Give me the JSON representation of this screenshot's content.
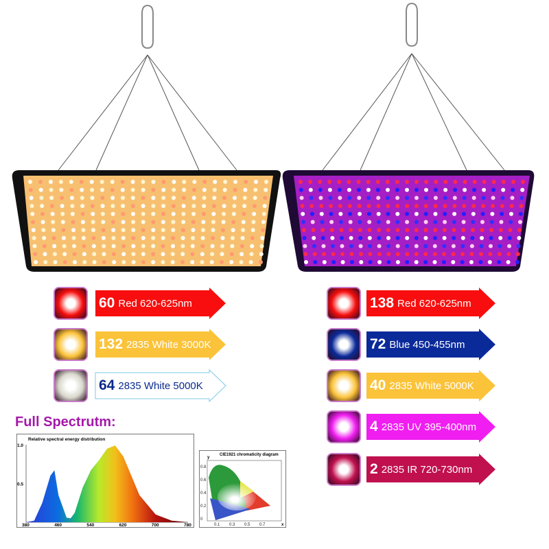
{
  "left_panel": {
    "leds": [
      {
        "count": "60",
        "label": "Red 620-625nm",
        "color": "#f80e0e",
        "text": "#ffffff",
        "icon": "red-led-icon"
      },
      {
        "count": "132",
        "label": "2835 White 3000K",
        "color": "#fbc33a",
        "text": "#ffffff",
        "icon": "warm-white-led-icon"
      },
      {
        "count": "64",
        "label": "2835 White 5000K",
        "color": "#ffffff",
        "text": "#0a2a8f",
        "icon": "cool-white-led-icon"
      }
    ]
  },
  "right_panel": {
    "leds": [
      {
        "count": "138",
        "label": "Red 620-625nm",
        "color": "#f80e0e",
        "text": "#ffffff",
        "icon": "red-led-icon"
      },
      {
        "count": "72",
        "label": "Blue 450-455nm",
        "color": "#0b2a9a",
        "text": "#ffffff",
        "icon": "blue-led-icon"
      },
      {
        "count": "40",
        "label": "2835 White 5000K",
        "color": "#fbc33a",
        "text": "#ffffff",
        "icon": "white-led-icon"
      },
      {
        "count": "4",
        "label": "2835 UV 395-400nm",
        "color": "#f01ef0",
        "text": "#ffffff",
        "icon": "uv-led-icon"
      },
      {
        "count": "2",
        "label": "2835 IR 720-730nm",
        "color": "#c0104e",
        "text": "#ffffff",
        "icon": "ir-led-icon"
      }
    ]
  },
  "spectrum": {
    "heading": "Full Spectrutm:",
    "chart_data": {
      "type": "area",
      "title": "Relative spectral energy distribution",
      "x": [
        380,
        400,
        420,
        440,
        450,
        460,
        480,
        490,
        500,
        520,
        540,
        560,
        580,
        600,
        620,
        640,
        660,
        700,
        740,
        780
      ],
      "values": [
        0,
        0.02,
        0.25,
        0.6,
        0.67,
        0.35,
        0.06,
        0.05,
        0.12,
        0.45,
        0.67,
        0.8,
        0.95,
        0.99,
        0.85,
        0.6,
        0.35,
        0.1,
        0.02,
        0
      ],
      "xticks": [
        "380",
        "460",
        "540",
        "620",
        "700",
        "780"
      ],
      "yticks": [
        "1.0",
        "0.5"
      ],
      "xlim": [
        380,
        780
      ],
      "ylim": [
        0,
        1.0
      ]
    },
    "cie": {
      "title": "CIE1921 chromaticity diagram",
      "ylabel": "y",
      "xlabel": "x",
      "yticks": [
        "0.8",
        "0.6",
        "0.4",
        "0.2",
        "0"
      ],
      "xticks": [
        "0.1",
        "0.3",
        "0.5",
        "0.7"
      ]
    }
  }
}
